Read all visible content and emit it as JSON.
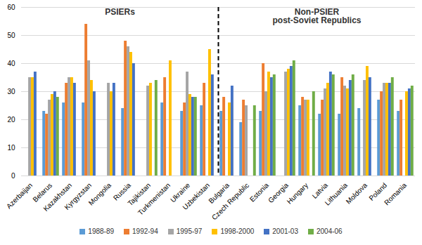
{
  "chart_data": {
    "type": "bar",
    "categories": [
      "Azerbaijan",
      "Belarus",
      "Kazakhstan",
      "Kyrgyzstan",
      "Mongolia",
      "Russia",
      "Tajikistan",
      "Turkmenistan",
      "Ukraine",
      "Uzbekistan",
      "Bulgaria",
      "Czech Republic",
      "Estonia",
      "Georgia",
      "Hungary",
      "Latvia",
      "Lithuania",
      "Moldova",
      "Poland",
      "Romania"
    ],
    "series": [
      {
        "name": "1988-89",
        "color": "#5b9bd5",
        "values": [
          null,
          23,
          26,
          26,
          null,
          24,
          null,
          26,
          23,
          25,
          23,
          19,
          23,
          null,
          25,
          22,
          22,
          24,
          27,
          23
        ]
      },
      {
        "name": "1992-94",
        "color": "#ed7d31",
        "values": [
          null,
          22,
          33,
          54,
          null,
          48,
          null,
          35,
          26,
          33,
          28,
          27,
          40,
          null,
          28,
          27,
          35,
          null,
          30,
          27
        ]
      },
      {
        "name": "1995-97",
        "color": "#a5a5a5",
        "values": [
          35,
          27,
          35,
          41,
          33,
          46,
          32,
          null,
          37,
          null,
          null,
          25,
          30,
          37,
          27,
          31,
          32,
          34,
          33,
          null
        ]
      },
      {
        "name": "1998-2000",
        "color": "#ffc000",
        "values": [
          35,
          29,
          35,
          34,
          30,
          44,
          33,
          41,
          29,
          45,
          26,
          null,
          37,
          38,
          27,
          33,
          31,
          39,
          33,
          30
        ]
      },
      {
        "name": "2001-03",
        "color": "#4472c4",
        "values": [
          37,
          30,
          33,
          30,
          33,
          40,
          null,
          null,
          28,
          36,
          32,
          null,
          35,
          39,
          null,
          37,
          34,
          35,
          33,
          31
        ]
      },
      {
        "name": "2004-06",
        "color": "#70ad47",
        "values": [
          null,
          28,
          null,
          null,
          null,
          null,
          34,
          null,
          28,
          null,
          null,
          25,
          36,
          41,
          30,
          36,
          36,
          null,
          35,
          32
        ]
      }
    ],
    "ylim": [
      0,
      60
    ],
    "yticks": [
      0,
      10,
      20,
      30,
      40,
      50,
      60
    ],
    "grid": true,
    "legend": "bottom",
    "annotations": [
      "PSIERs",
      "Non-PSIER\npost-Soviet Republics"
    ]
  }
}
